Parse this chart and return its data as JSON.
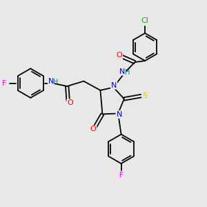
{
  "bg_color": "#e8e8e8",
  "bond_color": "#000000",
  "atom_colors": {
    "N": "#0000cc",
    "O": "#ff0000",
    "S": "#cccc00",
    "F": "#ee00ee",
    "Cl": "#00bb00",
    "H": "#008888",
    "C": "#000000"
  },
  "font_size": 8.0,
  "lw": 1.3
}
